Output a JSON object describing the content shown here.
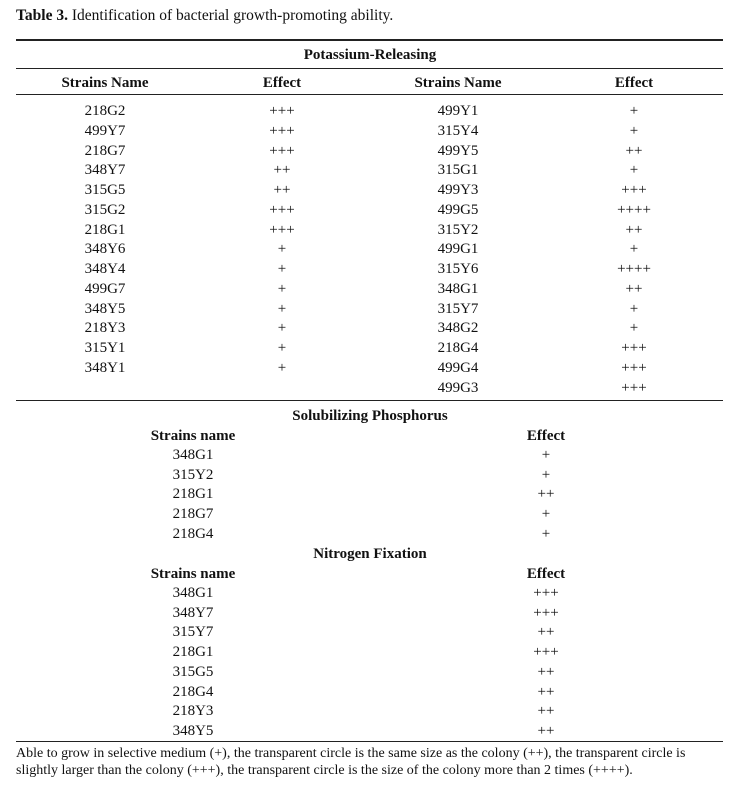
{
  "caption": {
    "label": "Table 3.",
    "text": "Identification of bacterial growth-promoting ability."
  },
  "sections": [
    {
      "title": "Potassium-Releasing",
      "headers": [
        "Strains Name",
        "Effect",
        "Strains Name",
        "Effect"
      ],
      "left": [
        [
          "218G2",
          "+++"
        ],
        [
          "499Y7",
          "+++"
        ],
        [
          "218G7",
          "+++"
        ],
        [
          "348Y7",
          "++"
        ],
        [
          "315G5",
          "++"
        ],
        [
          "315G2",
          "+++"
        ],
        [
          "218G1",
          "+++"
        ],
        [
          "348Y6",
          "+"
        ],
        [
          "348Y4",
          "+"
        ],
        [
          "499G7",
          "+"
        ],
        [
          "348Y5",
          "+"
        ],
        [
          "218Y3",
          "+"
        ],
        [
          "315Y1",
          "+"
        ],
        [
          "348Y1",
          "+"
        ]
      ],
      "right": [
        [
          "499Y1",
          "+"
        ],
        [
          "315Y4",
          "+"
        ],
        [
          "499Y5",
          "++"
        ],
        [
          "315G1",
          "+"
        ],
        [
          "499Y3",
          "+++"
        ],
        [
          "499G5",
          "++++"
        ],
        [
          "315Y2",
          "++"
        ],
        [
          "499G1",
          "+"
        ],
        [
          "315Y6",
          "++++"
        ],
        [
          "348G1",
          "++"
        ],
        [
          "315Y7",
          "+"
        ],
        [
          "348G2",
          "+"
        ],
        [
          "218G4",
          "+++"
        ],
        [
          "499G4",
          "+++"
        ],
        [
          "499G3",
          "+++"
        ]
      ]
    },
    {
      "title": "Solubilizing Phosphorus",
      "headers": [
        "Strains name",
        "Effect"
      ],
      "rows": [
        [
          "348G1",
          "+"
        ],
        [
          "315Y2",
          "+"
        ],
        [
          "218G1",
          "++"
        ],
        [
          "218G7",
          "+"
        ],
        [
          "218G4",
          "+"
        ]
      ]
    },
    {
      "title": "Nitrogen Fixation",
      "headers": [
        "Strains name",
        "Effect"
      ],
      "rows": [
        [
          "348G1",
          "+++"
        ],
        [
          "348Y7",
          "+++"
        ],
        [
          "315Y7",
          "++"
        ],
        [
          "218G1",
          "+++"
        ],
        [
          "315G5",
          "++"
        ],
        [
          "218G4",
          "++"
        ],
        [
          "218Y3",
          "++"
        ],
        [
          "348Y5",
          "++"
        ]
      ]
    }
  ],
  "footnote": "Able to grow in selective medium (+), the transparent circle is the same size as the colony (++), the transparent circle is slightly larger than the colony (+++), the transparent circle is the size of the colony more than 2 times (++++)."
}
